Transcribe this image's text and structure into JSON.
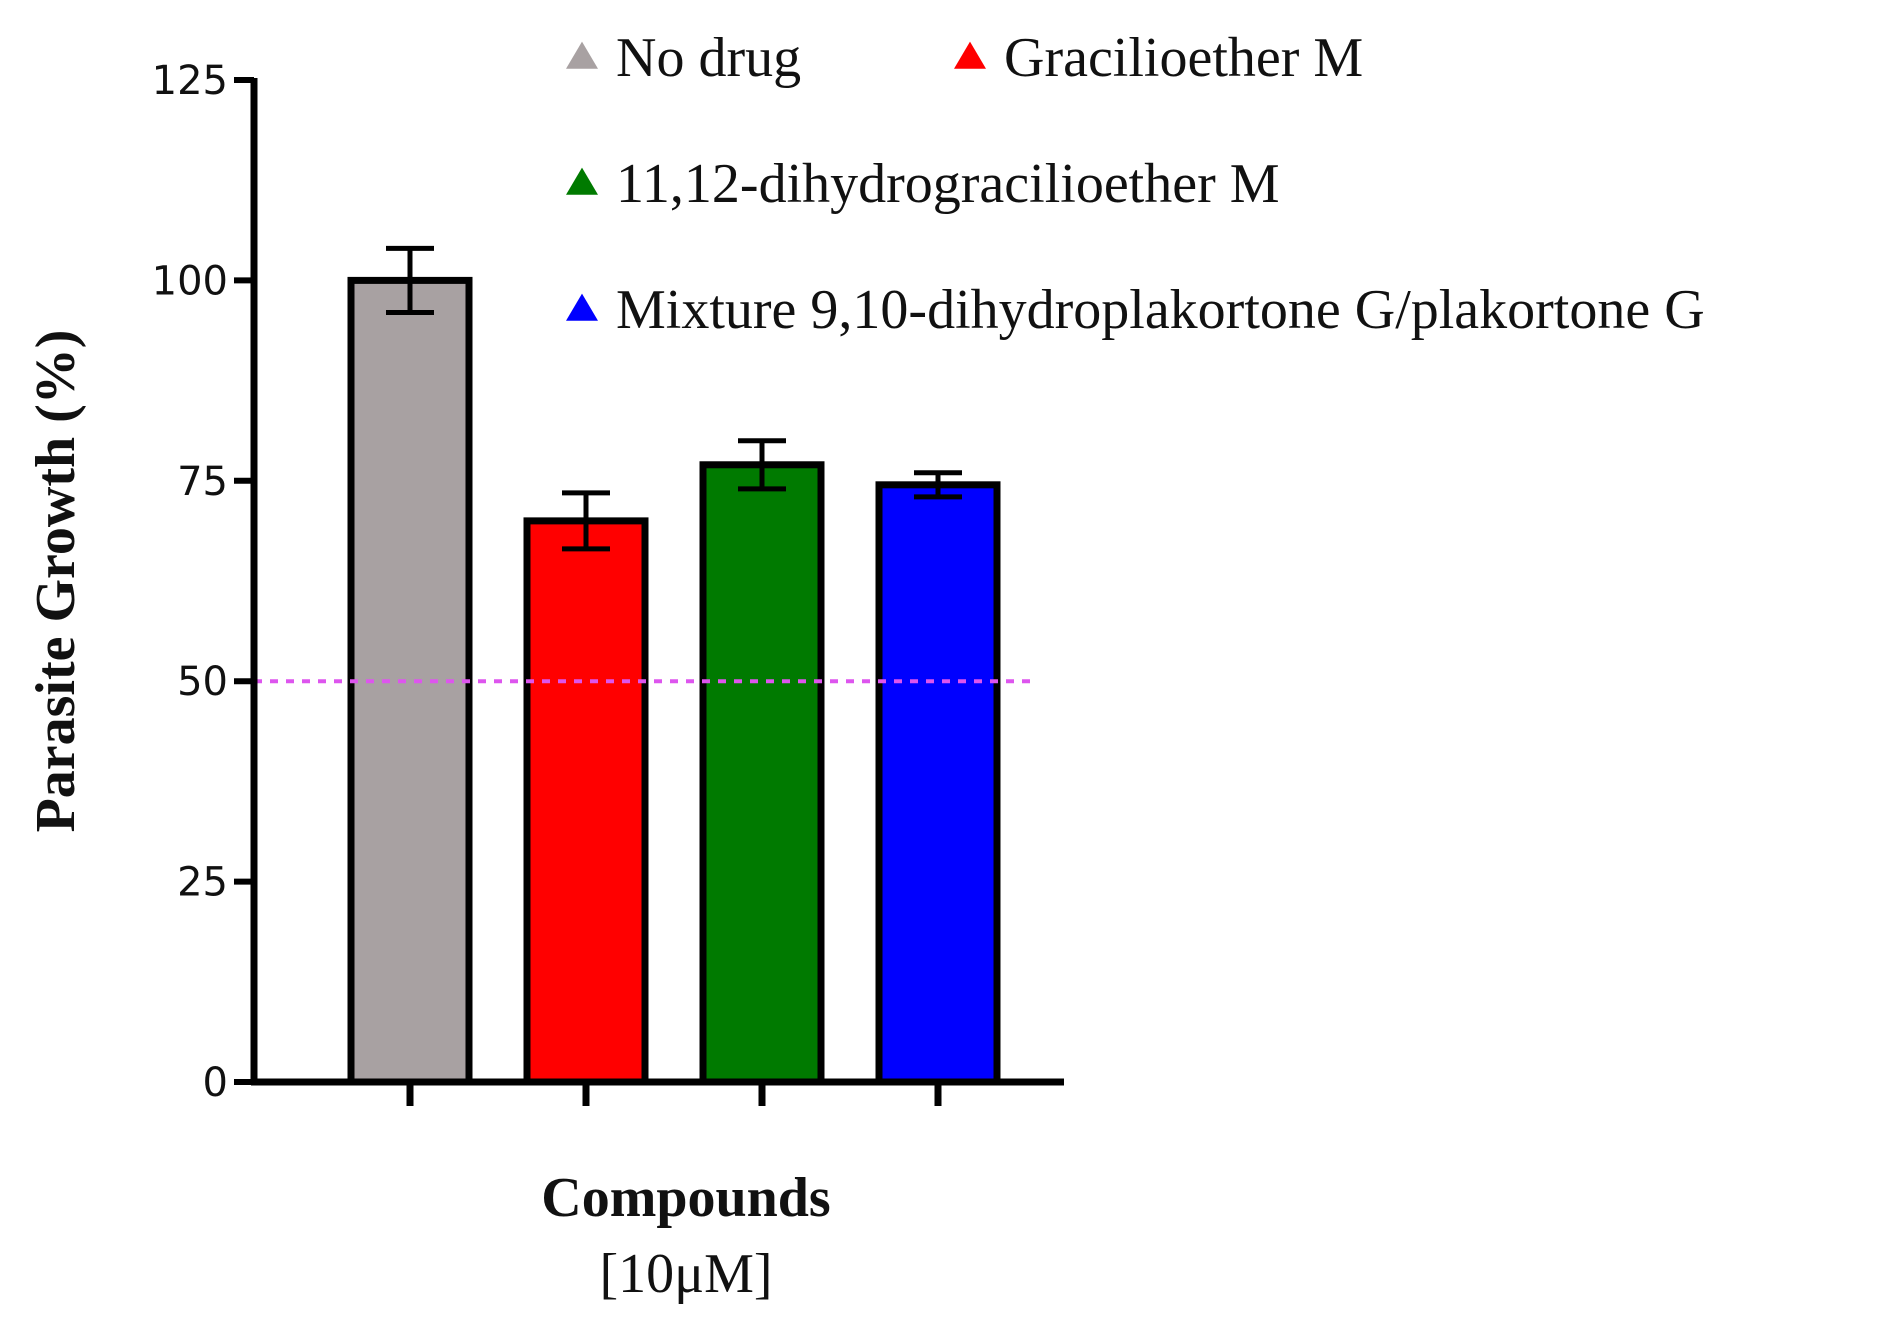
{
  "chart_data": {
    "type": "bar",
    "title": "",
    "xlabel": [
      "Compounds",
      "[10μM]"
    ],
    "ylabel": "Parasite Growth (%)",
    "ylim": [
      0,
      125
    ],
    "yticks": [
      0,
      25,
      50,
      75,
      100,
      125
    ],
    "categories": [
      "No drug",
      "Gracilioether M",
      "11,12-dihydrogracilioether M",
      "Mixture 9,10-dihydroplakortone G/plakortone G"
    ],
    "values": [
      100,
      70,
      77,
      74.5
    ],
    "errors": [
      4,
      3.5,
      3,
      1.5
    ],
    "colors": [
      "#a8a1a2",
      "#ff0000",
      "#007a00",
      "#0000ff"
    ],
    "reference_line": {
      "y": 50,
      "color": "#dd55ee",
      "style": "dotted"
    },
    "legend": {
      "placement": "top",
      "marker": "triangle",
      "entries": [
        {
          "label": "No drug",
          "color": "#a8a1a2"
        },
        {
          "label": "Gracilioether M",
          "color": "#ff0000"
        },
        {
          "label": "11,12-dihydrogracilioether M",
          "color": "#007a00"
        },
        {
          "label": "Mixture 9,10-dihydroplakortone G/plakortone G",
          "color": "#0000ff"
        }
      ]
    },
    "grid": false
  }
}
